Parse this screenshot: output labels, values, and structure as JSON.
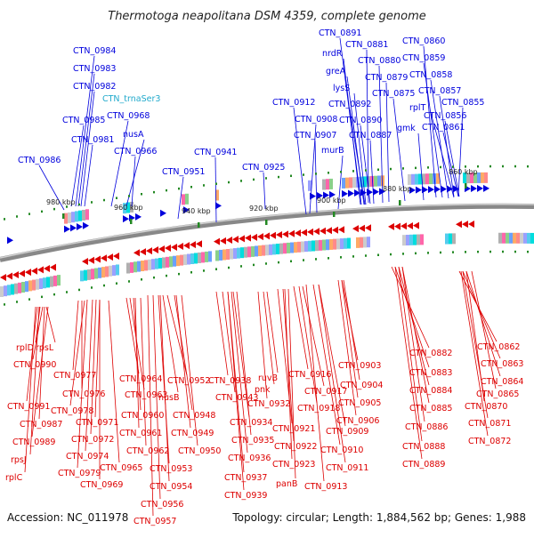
{
  "title": "Thermotoga neapolitana DSM 4359, complete genome",
  "footer": {
    "accession": "Accession: NC_011978",
    "topology": "Topology: circular; Length: 1,884,562 bp; Genes: 1,988"
  },
  "colors": {
    "forward": "#0000dd",
    "reverse": "#dd0000",
    "rna": "#22aacc",
    "backbone": "#888888",
    "tick": "#228822"
  },
  "kbp_labels": [
    "980 kbp",
    "960 kbp",
    "940 kbp",
    "920 kbp",
    "900 kbp",
    "880 kbp",
    "860 kbp"
  ],
  "top_labels": [
    {
      "text": "CTN_0984",
      "type": "forward"
    },
    {
      "text": "CTN_0983",
      "type": "forward"
    },
    {
      "text": "CTN_0982",
      "type": "forward"
    },
    {
      "text": "CTN_trnaSer3",
      "type": "rna"
    },
    {
      "text": "CTN_0968",
      "type": "forward"
    },
    {
      "text": "CTN_0985",
      "type": "forward"
    },
    {
      "text": "nusA",
      "type": "forward"
    },
    {
      "text": "CTN_0981",
      "type": "forward"
    },
    {
      "text": "CTN_0966",
      "type": "forward"
    },
    {
      "text": "CTN_0986",
      "type": "forward"
    },
    {
      "text": "CTN_0951",
      "type": "forward"
    },
    {
      "text": "CTN_0941",
      "type": "forward"
    },
    {
      "text": "CTN_0925",
      "type": "forward"
    },
    {
      "text": "CTN_0891",
      "type": "forward"
    },
    {
      "text": "nrdR",
      "type": "forward"
    },
    {
      "text": "CTN_0881",
      "type": "forward"
    },
    {
      "text": "CTN_0860",
      "type": "forward"
    },
    {
      "text": "CTN_0880",
      "type": "forward"
    },
    {
      "text": "CTN_0859",
      "type": "forward"
    },
    {
      "text": "greA",
      "type": "forward"
    },
    {
      "text": "CTN_0879",
      "type": "forward"
    },
    {
      "text": "CTN_0858",
      "type": "forward"
    },
    {
      "text": "lysS",
      "type": "forward"
    },
    {
      "text": "CTN_0875",
      "type": "forward"
    },
    {
      "text": "CTN_0857",
      "type": "forward"
    },
    {
      "text": "CTN_0912",
      "type": "forward"
    },
    {
      "text": "CTN_0892",
      "type": "forward"
    },
    {
      "text": "rplT",
      "type": "forward"
    },
    {
      "text": "CTN_0855",
      "type": "forward"
    },
    {
      "text": "CTN_0908",
      "type": "forward"
    },
    {
      "text": "CTN_0890",
      "type": "forward"
    },
    {
      "text": "CTN_0856",
      "type": "forward"
    },
    {
      "text": "CTN_0907",
      "type": "forward"
    },
    {
      "text": "CTN_0887",
      "type": "forward"
    },
    {
      "text": "gmk",
      "type": "forward"
    },
    {
      "text": "CTN_0861",
      "type": "forward"
    },
    {
      "text": "murB",
      "type": "forward"
    }
  ],
  "bottom_labels": [
    {
      "text": "rplD"
    },
    {
      "text": "rpsL"
    },
    {
      "text": "CTN_0990"
    },
    {
      "text": "CTN_0991"
    },
    {
      "text": "CTN_0987"
    },
    {
      "text": "CTN_0989"
    },
    {
      "text": "rpsJ"
    },
    {
      "text": "rplC"
    },
    {
      "text": "CTN_0977"
    },
    {
      "text": "CTN_0976"
    },
    {
      "text": "CTN_0978"
    },
    {
      "text": "CTN_0971"
    },
    {
      "text": "CTN_0972"
    },
    {
      "text": "CTN_0974"
    },
    {
      "text": "CTN_0979"
    },
    {
      "text": "CTN_0969"
    },
    {
      "text": "CTN_0965"
    },
    {
      "text": "CTN_0964"
    },
    {
      "text": "CTN_0963"
    },
    {
      "text": "CTN_0960"
    },
    {
      "text": "CTN_0961"
    },
    {
      "text": "CTN_0962"
    },
    {
      "text": "CTN_0952"
    },
    {
      "text": "nusB"
    },
    {
      "text": "CTN_0948"
    },
    {
      "text": "CTN_0949"
    },
    {
      "text": "CTN_0950"
    },
    {
      "text": "CTN_0953"
    },
    {
      "text": "CTN_0954"
    },
    {
      "text": "CTN_0956"
    },
    {
      "text": "CTN_0957"
    },
    {
      "text": "CTN_0938"
    },
    {
      "text": "CTN_0943"
    },
    {
      "text": "CTN_0934"
    },
    {
      "text": "CTN_0935"
    },
    {
      "text": "CTN_0936"
    },
    {
      "text": "CTN_0937"
    },
    {
      "text": "CTN_0939"
    },
    {
      "text": "ruvB"
    },
    {
      "text": "pnk"
    },
    {
      "text": "CTN_0932"
    },
    {
      "text": "CTN_0921"
    },
    {
      "text": "CTN_0922"
    },
    {
      "text": "CTN_0923"
    },
    {
      "text": "panB"
    },
    {
      "text": "CTN_0916"
    },
    {
      "text": "CTN_0917"
    },
    {
      "text": "CTN_0918"
    },
    {
      "text": "CTN_0909"
    },
    {
      "text": "CTN_0910"
    },
    {
      "text": "CTN_0911"
    },
    {
      "text": "CTN_0913"
    },
    {
      "text": "CTN_0903"
    },
    {
      "text": "CTN_0904"
    },
    {
      "text": "CTN_0905"
    },
    {
      "text": "CTN_0906"
    },
    {
      "text": "CTN_0882"
    },
    {
      "text": "CTN_0883"
    },
    {
      "text": "CTN_0884"
    },
    {
      "text": "CTN_0885"
    },
    {
      "text": "CTN_0886"
    },
    {
      "text": "CTN_0888"
    },
    {
      "text": "CTN_0889"
    },
    {
      "text": "CTN_0862"
    },
    {
      "text": "CTN_0863"
    },
    {
      "text": "CTN_0864"
    },
    {
      "text": "CTN_0865"
    },
    {
      "text": "CTN_0870"
    },
    {
      "text": "CTN_0871"
    },
    {
      "text": "CTN_0872"
    }
  ]
}
